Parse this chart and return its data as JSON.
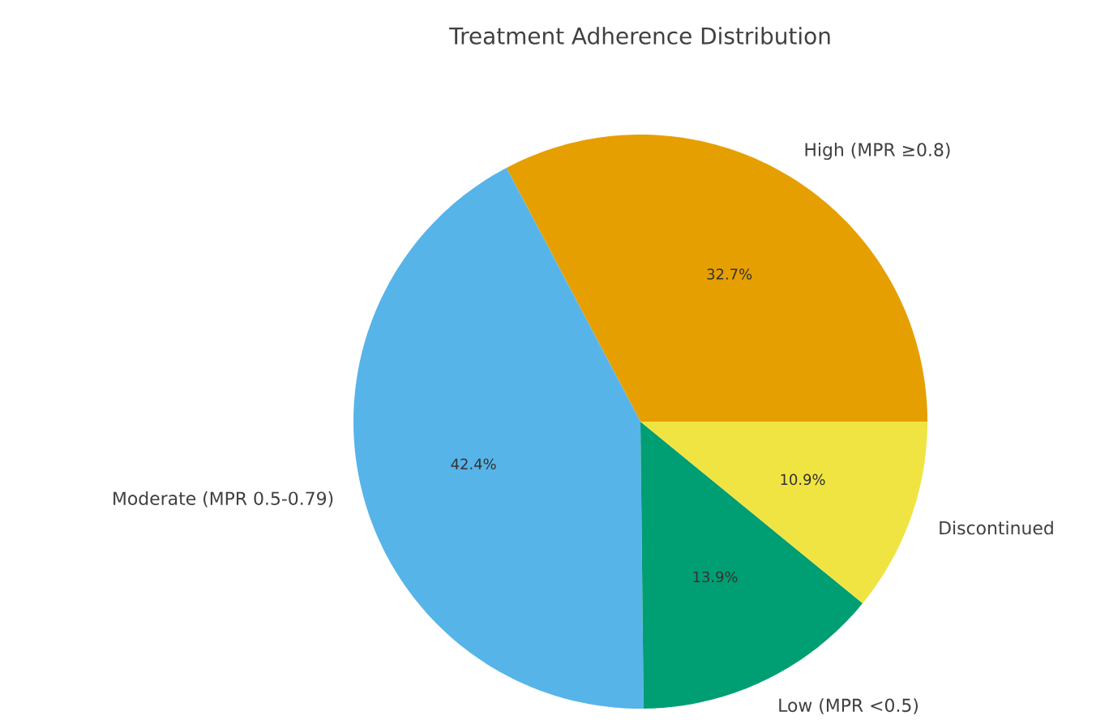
{
  "chart_data": {
    "type": "pie",
    "title": "Treatment Adherence Distribution",
    "categories": [
      "High (MPR ≥0.8)",
      "Moderate (MPR 0.5-0.79)",
      "Low (MPR <0.5)",
      "Discontinued"
    ],
    "values": [
      32.7,
      42.4,
      13.9,
      10.9
    ],
    "colors": [
      "#e69f00",
      "#56b4e9",
      "#009e73",
      "#f0e442"
    ],
    "value_labels": [
      "32.7%",
      "42.4%",
      "13.9%",
      "10.9%"
    ]
  }
}
